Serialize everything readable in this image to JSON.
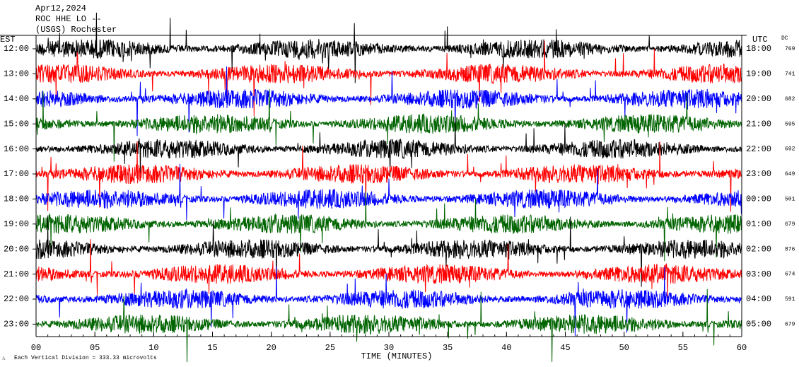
{
  "header": {
    "date": "Apr12,2024",
    "station": "ROC HHE LO --",
    "network": "(USGS) Rochester"
  },
  "left_title": "EST",
  "right_title": "UTC",
  "dc_title": "DC",
  "rows": [
    {
      "est": "12:00",
      "utc": "18:00",
      "dc": 769
    },
    {
      "est": "13:00",
      "utc": "19:00",
      "dc": 741
    },
    {
      "est": "14:00",
      "utc": "20:00",
      "dc": 682
    },
    {
      "est": "15:00",
      "utc": "21:00",
      "dc": 595
    },
    {
      "est": "16:00",
      "utc": "22:00",
      "dc": 692
    },
    {
      "est": "17:00",
      "utc": "23:00",
      "dc": 649
    },
    {
      "est": "18:00",
      "utc": "00:00",
      "dc": 501
    },
    {
      "est": "19:00",
      "utc": "01:00",
      "dc": 679
    },
    {
      "est": "20:00",
      "utc": "02:00",
      "dc": 876
    },
    {
      "est": "21:00",
      "utc": "03:00",
      "dc": 674
    },
    {
      "est": "22:00",
      "utc": "04:00",
      "dc": 591
    },
    {
      "est": "23:00",
      "utc": "05:00",
      "dc": 679
    }
  ],
  "trace_colors": [
    "#000000",
    "#ff0000",
    "#0000ff",
    "#006400"
  ],
  "xlim": [
    0,
    60
  ],
  "xticks": [
    {
      "value": 0,
      "label": "00"
    },
    {
      "value": 5,
      "label": "05"
    },
    10,
    15,
    20,
    25,
    30,
    35,
    40,
    45,
    50,
    55,
    60
  ],
  "xlabel": "TIME (MINUTES)",
  "footer": "Each Vertical Division = 333.33 microvolts"
}
